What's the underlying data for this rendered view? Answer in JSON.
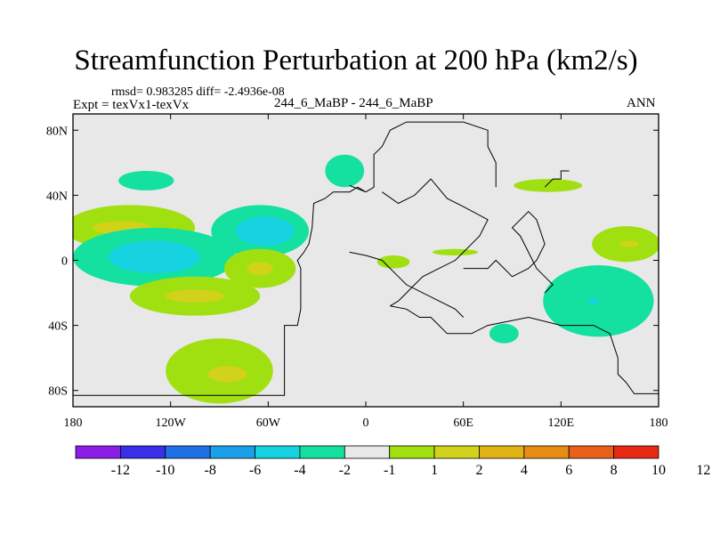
{
  "chart_data": {
    "type": "heatmap",
    "title": "Streamfunction Perturbation at 200 hPa (km2/s)",
    "rmsd_text": "rmsd= 0.983285 diff= -2.4936e-08",
    "expt_text": "Expt = texVx1-texVx",
    "case_text": "244_6_MaBP - 244_6_MaBP",
    "season": "ANN",
    "xlim": [
      -180,
      180
    ],
    "ylim": [
      -90,
      90
    ],
    "x_ticks": [
      {
        "value": -180,
        "label": "180"
      },
      {
        "value": -120,
        "label": "120W"
      },
      {
        "value": -60,
        "label": "60W"
      },
      {
        "value": 0,
        "label": "0"
      },
      {
        "value": 60,
        "label": "60E"
      },
      {
        "value": 120,
        "label": "120E"
      },
      {
        "value": 180,
        "label": "180"
      }
    ],
    "y_ticks": [
      {
        "value": 80,
        "label": "80N"
      },
      {
        "value": 40,
        "label": "40N"
      },
      {
        "value": 0,
        "label": "0"
      },
      {
        "value": -40,
        "label": "40S"
      },
      {
        "value": -80,
        "label": "80S"
      }
    ],
    "colorbar": {
      "colors": [
        "#8a1ee6",
        "#3a2ee6",
        "#1f6fe6",
        "#1b9fe8",
        "#16d2e0",
        "#14e0a0",
        "#e8e8e8",
        "#a0e010",
        "#d2d21a",
        "#e0b414",
        "#e88c14",
        "#e8601a",
        "#e82a14"
      ],
      "labels": [
        "-12",
        "-10",
        "-8",
        "-6",
        "-4",
        "-2",
        "-1",
        "1",
        "2",
        "4",
        "6",
        "8",
        "10",
        "12"
      ]
    },
    "features": [
      {
        "type": "ellipse",
        "level": "-2",
        "color": "#14e0a0",
        "lon": -135,
        "lat": 49,
        "rlon": 17,
        "rlat": 6
      },
      {
        "type": "ellipse",
        "level": "-2",
        "color": "#14e0a0",
        "lon": -13,
        "lat": 55,
        "rlon": 12,
        "rlat": 10
      },
      {
        "type": "ellipse",
        "level": "2",
        "color": "#a0e010",
        "lon": -145,
        "lat": 20,
        "rlon": 40,
        "rlat": 14
      },
      {
        "type": "ellipse",
        "level": "4",
        "color": "#d2d21a",
        "lon": -150,
        "lat": 20,
        "rlon": 18,
        "rlat": 4
      },
      {
        "type": "ellipse",
        "level": "-2",
        "color": "#14e0a0",
        "lon": -65,
        "lat": 18,
        "rlon": 30,
        "rlat": 16
      },
      {
        "type": "ellipse",
        "level": "-4",
        "color": "#16d2e0",
        "lon": -62,
        "lat": 18,
        "rlon": 18,
        "rlat": 9
      },
      {
        "type": "ellipse",
        "level": "-2",
        "color": "#14e0a0",
        "lon": -130,
        "lat": 2,
        "rlon": 50,
        "rlat": 18
      },
      {
        "type": "ellipse",
        "level": "-4",
        "color": "#16d2e0",
        "lon": -130,
        "lat": 2,
        "rlon": 28,
        "rlat": 10
      },
      {
        "type": "ellipse",
        "level": "2",
        "color": "#a0e010",
        "lon": -105,
        "lat": -22,
        "rlon": 40,
        "rlat": 12
      },
      {
        "type": "ellipse",
        "level": "4",
        "color": "#d2d21a",
        "lon": -105,
        "lat": -22,
        "rlon": 18,
        "rlat": 4
      },
      {
        "type": "ellipse",
        "level": "2",
        "color": "#a0e010",
        "lon": -65,
        "lat": -5,
        "rlon": 22,
        "rlat": 12
      },
      {
        "type": "ellipse",
        "level": "4",
        "color": "#d2d21a",
        "lon": -65,
        "lat": -5,
        "rlon": 8,
        "rlat": 4
      },
      {
        "type": "ellipse",
        "level": "2",
        "color": "#a0e010",
        "lon": -90,
        "lat": -68,
        "rlon": 33,
        "rlat": 20
      },
      {
        "type": "ellipse",
        "level": "4",
        "color": "#d2d21a",
        "lon": -85,
        "lat": -70,
        "rlon": 12,
        "rlat": 5
      },
      {
        "type": "ellipse",
        "level": "2",
        "color": "#a0e010",
        "lon": 55,
        "lat": 5,
        "rlon": 14,
        "rlat": 2
      },
      {
        "type": "ellipse",
        "level": "2",
        "color": "#a0e010",
        "lon": 17,
        "lat": -1,
        "rlon": 10,
        "rlat": 4
      },
      {
        "type": "ellipse",
        "level": "2",
        "color": "#a0e010",
        "lon": 112,
        "lat": 46,
        "rlon": 21,
        "rlat": 4
      },
      {
        "type": "ellipse",
        "level": "-2",
        "color": "#14e0a0",
        "lon": 85,
        "lat": -45,
        "rlon": 9,
        "rlat": 6
      },
      {
        "type": "ellipse",
        "level": "-2",
        "color": "#14e0a0",
        "lon": 143,
        "lat": -25,
        "rlon": 34,
        "rlat": 22
      },
      {
        "type": "ellipse",
        "level": "-4",
        "color": "#16d2e0",
        "lon": 140,
        "lat": -25,
        "rlon": 3,
        "rlat": 2
      },
      {
        "type": "ellipse",
        "level": "2",
        "color": "#a0e010",
        "lon": 160,
        "lat": 10,
        "rlon": 21,
        "rlat": 11
      },
      {
        "type": "ellipse",
        "level": "4",
        "color": "#d2d21a",
        "lon": 162,
        "lat": 10,
        "rlon": 6,
        "rlat": 2
      }
    ],
    "coastlines": [
      [
        [
          -180,
          -83
        ],
        [
          -50,
          -83
        ],
        [
          -50,
          -40
        ],
        [
          -42,
          -40
        ],
        [
          -40,
          -30
        ],
        [
          -40,
          -5
        ],
        [
          -42,
          0
        ],
        [
          -38,
          5
        ],
        [
          -35,
          10
        ],
        [
          -33,
          20
        ],
        [
          -32,
          35
        ],
        [
          -25,
          38
        ],
        [
          -20,
          42
        ],
        [
          -10,
          42
        ],
        [
          -5,
          45
        ],
        [
          0,
          42
        ],
        [
          -10,
          46
        ]
      ],
      [
        [
          0,
          42
        ],
        [
          5,
          45
        ],
        [
          5,
          65
        ],
        [
          10,
          70
        ],
        [
          15,
          80
        ],
        [
          25,
          85
        ],
        [
          60,
          85
        ],
        [
          75,
          80
        ],
        [
          75,
          70
        ],
        [
          80,
          60
        ],
        [
          80,
          45
        ]
      ],
      [
        [
          10,
          42
        ],
        [
          20,
          35
        ],
        [
          30,
          40
        ],
        [
          40,
          50
        ],
        [
          50,
          38
        ],
        [
          60,
          33
        ],
        [
          75,
          25
        ],
        [
          70,
          15
        ],
        [
          65,
          10
        ],
        [
          60,
          5
        ],
        [
          55,
          0
        ],
        [
          45,
          -5
        ],
        [
          35,
          -10
        ],
        [
          30,
          -15
        ],
        [
          25,
          -20
        ],
        [
          20,
          -25
        ],
        [
          15,
          -28
        ]
      ],
      [
        [
          15,
          -28
        ],
        [
          25,
          -30
        ],
        [
          33,
          -35
        ],
        [
          40,
          -35
        ],
        [
          45,
          -40
        ],
        [
          50,
          -45
        ],
        [
          55,
          -45
        ],
        [
          65,
          -45
        ],
        [
          75,
          -40
        ],
        [
          100,
          -35
        ],
        [
          120,
          -40
        ],
        [
          140,
          -40
        ],
        [
          150,
          -45
        ],
        [
          155,
          -60
        ],
        [
          155,
          -70
        ],
        [
          160,
          -75
        ],
        [
          165,
          -82
        ],
        [
          180,
          -82
        ]
      ],
      [
        [
          -10,
          5
        ],
        [
          0,
          3
        ],
        [
          10,
          0
        ],
        [
          15,
          -5
        ],
        [
          20,
          -10
        ],
        [
          25,
          -15
        ],
        [
          45,
          -25
        ],
        [
          55,
          -30
        ],
        [
          60,
          -35
        ]
      ],
      [
        [
          60,
          -5
        ],
        [
          75,
          -5
        ],
        [
          80,
          0
        ],
        [
          85,
          -5
        ],
        [
          90,
          -10
        ],
        [
          100,
          -5
        ],
        [
          105,
          0
        ],
        [
          110,
          10
        ],
        [
          105,
          25
        ],
        [
          100,
          30
        ],
        [
          95,
          25
        ],
        [
          90,
          20
        ],
        [
          95,
          15
        ],
        [
          100,
          5
        ],
        [
          105,
          -5
        ],
        [
          110,
          -10
        ],
        [
          115,
          -15
        ],
        [
          110,
          -20
        ]
      ],
      [
        [
          110,
          45
        ],
        [
          115,
          50
        ],
        [
          120,
          50
        ],
        [
          120,
          55
        ],
        [
          125,
          55
        ]
      ]
    ]
  }
}
